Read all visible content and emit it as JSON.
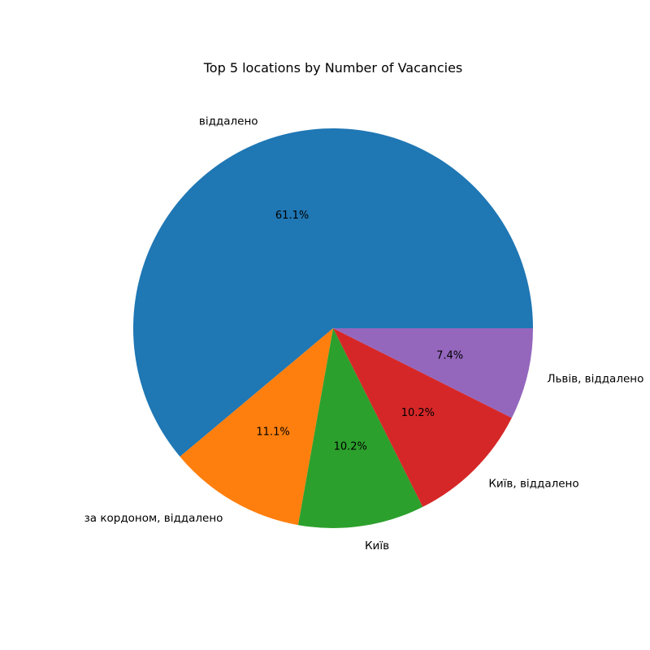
{
  "chart_data": {
    "type": "pie",
    "title": "Top 5 locations by Number of Vacancies",
    "start_angle_deg": 0,
    "direction": "counterclockwise",
    "slices": [
      {
        "label": "віддалено",
        "value": 61.1,
        "pct_label": "61.1%",
        "color": "#1f77b4"
      },
      {
        "label": "за кордоном, віддалено",
        "value": 11.1,
        "pct_label": "11.1%",
        "color": "#ff7f0e"
      },
      {
        "label": "Київ",
        "value": 10.2,
        "pct_label": "10.2%",
        "color": "#2ca02c"
      },
      {
        "label": "Київ, віддалено",
        "value": 10.2,
        "pct_label": "10.2%",
        "color": "#d62728"
      },
      {
        "label": "Львів, віддалено",
        "value": 7.4,
        "pct_label": "7.4%",
        "color": "#9467bd"
      }
    ]
  }
}
